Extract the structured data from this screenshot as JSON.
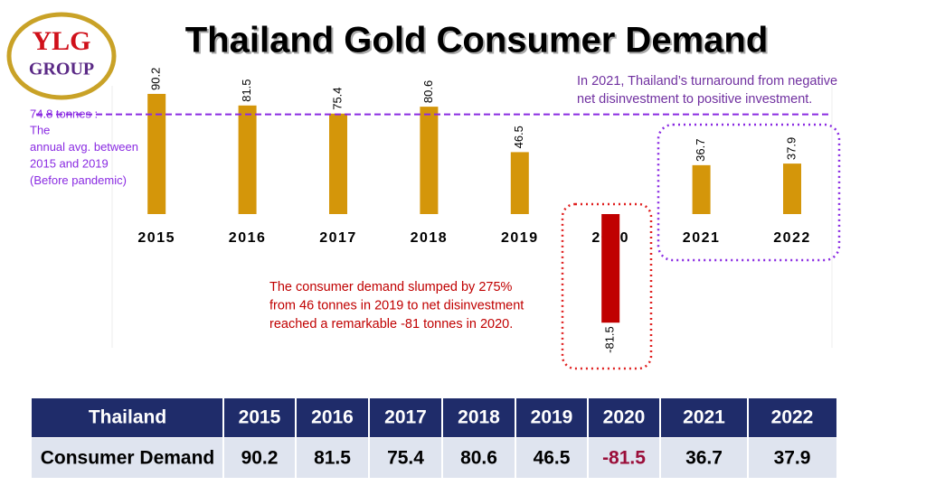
{
  "logo": {
    "top": "YLG",
    "bottom": "GROUP"
  },
  "chart_data": {
    "type": "bar",
    "title": "Thailand Gold Consumer Demand",
    "categories": [
      "2015",
      "2016",
      "2017",
      "2018",
      "2019",
      "2020",
      "2021",
      "2022"
    ],
    "values": [
      90.2,
      81.5,
      75.4,
      80.6,
      46.5,
      -81.5,
      36.7,
      37.9
    ],
    "color": "#d4960a",
    "negative_color": "#c00000",
    "ylim": [
      -100,
      100
    ],
    "reference_line": {
      "value": 74.8,
      "color": "#8a2be2",
      "label": "74.8 tonnes :",
      "note": [
        "The",
        "annual avg. between",
        "2015 and 2019",
        "(Before pandemic)"
      ]
    },
    "annotations": [
      {
        "color": "#c00000",
        "lines": [
          "The consumer demand slumped by 275%",
          "from 46 tonnes in 2019 to net disinvestment",
          "reached a remarkable -81 tonnes in 2020."
        ]
      },
      {
        "color": "#7030a0",
        "lines": [
          "In 2021, Thailand’s turnaround from negative",
          "net disinvestment to positive investment."
        ]
      }
    ]
  },
  "table": {
    "row_header": "Thailand",
    "row_label": "Consumer Demand",
    "negative_color": "#9b0f3a"
  }
}
